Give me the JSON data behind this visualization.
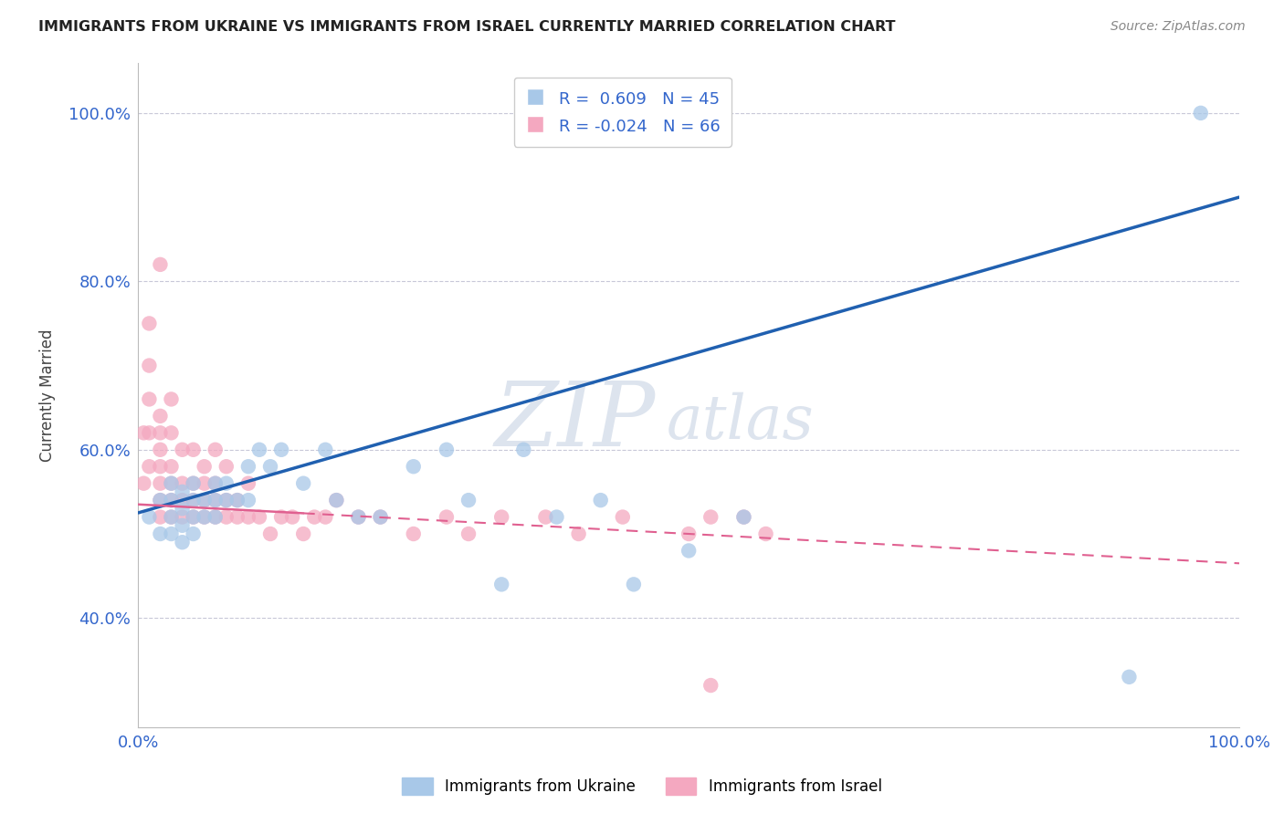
{
  "title": "IMMIGRANTS FROM UKRAINE VS IMMIGRANTS FROM ISRAEL CURRENTLY MARRIED CORRELATION CHART",
  "source": "Source: ZipAtlas.com",
  "ylabel": "Currently Married",
  "legend_ukraine": "Immigrants from Ukraine",
  "legend_israel": "Immigrants from Israel",
  "ukraine_R": "0.609",
  "ukraine_N": "45",
  "israel_R": "-0.024",
  "israel_N": "66",
  "ukraine_color": "#a8c8e8",
  "israel_color": "#f4a8c0",
  "ukraine_line_color": "#2060b0",
  "israel_line_color": "#e06090",
  "background_color": "#ffffff",
  "grid_color": "#c8c8d8",
  "ukraine_x": [
    0.01,
    0.02,
    0.02,
    0.03,
    0.03,
    0.03,
    0.03,
    0.04,
    0.04,
    0.04,
    0.04,
    0.05,
    0.05,
    0.05,
    0.05,
    0.06,
    0.06,
    0.07,
    0.07,
    0.07,
    0.08,
    0.08,
    0.09,
    0.1,
    0.1,
    0.11,
    0.12,
    0.13,
    0.15,
    0.17,
    0.18,
    0.2,
    0.22,
    0.25,
    0.28,
    0.3,
    0.33,
    0.35,
    0.38,
    0.42,
    0.45,
    0.5,
    0.55,
    0.9,
    0.965
  ],
  "ukraine_y": [
    0.52,
    0.5,
    0.54,
    0.5,
    0.52,
    0.54,
    0.56,
    0.49,
    0.51,
    0.53,
    0.55,
    0.5,
    0.52,
    0.54,
    0.56,
    0.52,
    0.54,
    0.52,
    0.54,
    0.56,
    0.54,
    0.56,
    0.54,
    0.54,
    0.58,
    0.6,
    0.58,
    0.6,
    0.56,
    0.6,
    0.54,
    0.52,
    0.52,
    0.58,
    0.6,
    0.54,
    0.44,
    0.6,
    0.52,
    0.54,
    0.44,
    0.48,
    0.52,
    0.33,
    1.0
  ],
  "israel_x": [
    0.005,
    0.005,
    0.01,
    0.01,
    0.01,
    0.01,
    0.01,
    0.02,
    0.02,
    0.02,
    0.02,
    0.02,
    0.02,
    0.02,
    0.02,
    0.03,
    0.03,
    0.03,
    0.03,
    0.03,
    0.03,
    0.04,
    0.04,
    0.04,
    0.04,
    0.05,
    0.05,
    0.05,
    0.05,
    0.06,
    0.06,
    0.06,
    0.06,
    0.07,
    0.07,
    0.07,
    0.07,
    0.08,
    0.08,
    0.08,
    0.09,
    0.09,
    0.1,
    0.1,
    0.11,
    0.12,
    0.13,
    0.14,
    0.15,
    0.16,
    0.17,
    0.18,
    0.2,
    0.22,
    0.25,
    0.28,
    0.3,
    0.33,
    0.37,
    0.4,
    0.44,
    0.5,
    0.52,
    0.55,
    0.57,
    0.52
  ],
  "israel_y": [
    0.56,
    0.62,
    0.58,
    0.62,
    0.66,
    0.7,
    0.75,
    0.52,
    0.54,
    0.56,
    0.58,
    0.6,
    0.62,
    0.64,
    0.82,
    0.52,
    0.54,
    0.56,
    0.58,
    0.62,
    0.66,
    0.52,
    0.54,
    0.56,
    0.6,
    0.52,
    0.54,
    0.56,
    0.6,
    0.52,
    0.54,
    0.56,
    0.58,
    0.52,
    0.54,
    0.56,
    0.6,
    0.52,
    0.54,
    0.58,
    0.52,
    0.54,
    0.52,
    0.56,
    0.52,
    0.5,
    0.52,
    0.52,
    0.5,
    0.52,
    0.52,
    0.54,
    0.52,
    0.52,
    0.5,
    0.52,
    0.5,
    0.52,
    0.52,
    0.5,
    0.52,
    0.5,
    0.52,
    0.52,
    0.5,
    0.32
  ],
  "xlim": [
    0.0,
    1.0
  ],
  "ylim": [
    0.27,
    1.06
  ],
  "ytick_positions": [
    0.4,
    0.6,
    0.8,
    1.0
  ],
  "ytick_labels": [
    "40.0%",
    "60.0%",
    "80.0%",
    "100.0%"
  ],
  "xtick_positions": [
    0.0,
    1.0
  ],
  "xtick_labels": [
    "0.0%",
    "100.0%"
  ],
  "ukraine_line_x0": 0.0,
  "ukraine_line_y0": 0.525,
  "ukraine_line_x1": 1.0,
  "ukraine_line_y1": 0.9,
  "israel_line_x0": 0.0,
  "israel_line_y0": 0.535,
  "israel_line_x1": 1.0,
  "israel_line_y1": 0.465
}
